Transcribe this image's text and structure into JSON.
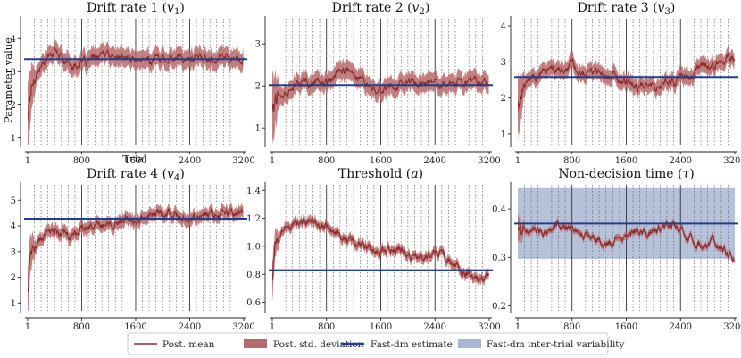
{
  "chart_data": {
    "type": "line",
    "shared": {
      "xlabel": "Trial",
      "ylabel": "Parameter value",
      "x_ticks": [
        1,
        800,
        1600,
        2400,
        3200
      ],
      "x_range": [
        1,
        3200
      ],
      "solid_vlines": [
        800,
        1600,
        2400
      ],
      "dotted_vline_spacing": 100
    },
    "colors": {
      "mean": "#8b2a2a",
      "band": "#b86a6a",
      "fastdm": "#1f3f8f",
      "variability": "#a9b6d4"
    },
    "legend": [
      {
        "key": "mean",
        "label": "Post. mean"
      },
      {
        "key": "band",
        "label": "Post. std. deviation"
      },
      {
        "key": "fastdm",
        "label": "Fast-dm estimate"
      },
      {
        "key": "variability",
        "label": "Fast-dm inter-trial variability"
      }
    ],
    "panels": [
      {
        "id": "v1",
        "title_pre": "Drift rate 1 (",
        "title_sym": "v",
        "title_sub": "1",
        "title_post": ")",
        "ylim": [
          0.8,
          4.6
        ],
        "yticks": [
          1,
          2,
          3,
          4
        ],
        "fastdm": 3.38,
        "band_width": 0.28,
        "keypoints": [
          [
            1,
            1.7
          ],
          [
            60,
            2.6
          ],
          [
            150,
            3.05
          ],
          [
            300,
            3.45
          ],
          [
            400,
            3.6
          ],
          [
            550,
            3.35
          ],
          [
            700,
            3.2
          ],
          [
            900,
            3.3
          ],
          [
            1100,
            3.5
          ],
          [
            1300,
            3.45
          ],
          [
            1500,
            3.4
          ],
          [
            1700,
            3.3
          ],
          [
            1900,
            3.4
          ],
          [
            2100,
            3.45
          ],
          [
            2300,
            3.35
          ],
          [
            2500,
            3.45
          ],
          [
            2700,
            3.4
          ],
          [
            2900,
            3.45
          ],
          [
            3100,
            3.4
          ],
          [
            3200,
            3.35
          ]
        ]
      },
      {
        "id": "v2",
        "title_pre": "Drift rate 2 (",
        "title_sym": "v",
        "title_sub": "2",
        "title_post": ")",
        "ylim": [
          0.6,
          3.6
        ],
        "yticks": [
          1,
          2,
          3
        ],
        "fastdm": 2.02,
        "band_width": 0.22,
        "keypoints": [
          [
            1,
            1.5
          ],
          [
            60,
            1.7
          ],
          [
            200,
            1.85
          ],
          [
            400,
            2.05
          ],
          [
            600,
            2.1
          ],
          [
            800,
            2.05
          ],
          [
            950,
            2.3
          ],
          [
            1100,
            2.35
          ],
          [
            1300,
            2.2
          ],
          [
            1450,
            2.05
          ],
          [
            1600,
            1.9
          ],
          [
            1800,
            2.0
          ],
          [
            2000,
            2.05
          ],
          [
            2200,
            2.0
          ],
          [
            2400,
            2.1
          ],
          [
            2600,
            2.05
          ],
          [
            2800,
            2.1
          ],
          [
            3000,
            2.2
          ],
          [
            3200,
            2.05
          ]
        ]
      },
      {
        "id": "v3",
        "title_pre": "Drift rate 3 (",
        "title_sym": "v",
        "title_sub": "3",
        "title_post": ")",
        "ylim": [
          0.7,
          4.2
        ],
        "yticks": [
          1,
          2,
          3,
          4
        ],
        "fastdm": 2.58,
        "band_width": 0.22,
        "keypoints": [
          [
            1,
            1.7
          ],
          [
            60,
            2.1
          ],
          [
            150,
            2.45
          ],
          [
            300,
            2.65
          ],
          [
            450,
            2.85
          ],
          [
            600,
            2.75
          ],
          [
            800,
            2.85
          ],
          [
            1000,
            2.75
          ],
          [
            1200,
            2.65
          ],
          [
            1400,
            2.55
          ],
          [
            1600,
            2.4
          ],
          [
            1800,
            2.3
          ],
          [
            2000,
            2.3
          ],
          [
            2200,
            2.45
          ],
          [
            2400,
            2.5
          ],
          [
            2600,
            2.7
          ],
          [
            2800,
            2.85
          ],
          [
            3000,
            3.05
          ],
          [
            3200,
            3.1
          ]
        ]
      },
      {
        "id": "v4",
        "title_pre": "Drift rate 4 (",
        "title_sym": "v",
        "title_sub": "4",
        "title_post": ")",
        "ylim": [
          0.7,
          5.6
        ],
        "yticks": [
          1,
          2,
          3,
          4,
          5
        ],
        "fastdm": 4.28,
        "band_width": 0.25,
        "keypoints": [
          [
            1,
            1.6
          ],
          [
            50,
            2.8
          ],
          [
            150,
            3.4
          ],
          [
            300,
            3.7
          ],
          [
            450,
            3.75
          ],
          [
            600,
            3.6
          ],
          [
            800,
            3.8
          ],
          [
            1000,
            4.0
          ],
          [
            1200,
            4.15
          ],
          [
            1400,
            4.25
          ],
          [
            1600,
            4.25
          ],
          [
            1800,
            4.5
          ],
          [
            2000,
            4.5
          ],
          [
            2200,
            4.45
          ],
          [
            2400,
            4.35
          ],
          [
            2600,
            4.45
          ],
          [
            2800,
            4.5
          ],
          [
            3000,
            4.55
          ],
          [
            3200,
            4.55
          ]
        ]
      },
      {
        "id": "a",
        "title_pre": "Threshold (",
        "title_sym": "a",
        "title_sub": "",
        "title_post": ")",
        "ylim": [
          0.54,
          1.44
        ],
        "yticks": [
          0.6,
          0.8,
          1.0,
          1.2,
          1.4
        ],
        "ytick_decimals": 1,
        "fastdm": 0.83,
        "band_width": 0.035,
        "keypoints": [
          [
            1,
            0.75
          ],
          [
            40,
            1.05
          ],
          [
            150,
            1.12
          ],
          [
            300,
            1.16
          ],
          [
            500,
            1.19
          ],
          [
            700,
            1.17
          ],
          [
            900,
            1.12
          ],
          [
            1100,
            1.05
          ],
          [
            1300,
            1.01
          ],
          [
            1500,
            0.98
          ],
          [
            1700,
            0.98
          ],
          [
            1900,
            0.97
          ],
          [
            2100,
            0.93
          ],
          [
            2300,
            0.92
          ],
          [
            2450,
            0.97
          ],
          [
            2600,
            0.89
          ],
          [
            2800,
            0.81
          ],
          [
            3000,
            0.77
          ],
          [
            3100,
            0.76
          ],
          [
            3200,
            0.79
          ]
        ]
      },
      {
        "id": "tau",
        "title_pre": "Non-decision time (",
        "title_sym": "τ",
        "title_sub": "",
        "title_post": ")",
        "ylim": [
          0.19,
          0.45
        ],
        "yticks": [
          0.2,
          0.3,
          0.4
        ],
        "ytick_decimals": 1,
        "fastdm": 0.37,
        "variability": [
          0.297,
          0.443
        ],
        "band_width": 0.007,
        "keypoints": [
          [
            1,
            0.36
          ],
          [
            60,
            0.35
          ],
          [
            200,
            0.36
          ],
          [
            400,
            0.35
          ],
          [
            550,
            0.37
          ],
          [
            700,
            0.36
          ],
          [
            900,
            0.35
          ],
          [
            1100,
            0.34
          ],
          [
            1300,
            0.33
          ],
          [
            1500,
            0.34
          ],
          [
            1700,
            0.36
          ],
          [
            1900,
            0.35
          ],
          [
            2100,
            0.36
          ],
          [
            2300,
            0.37
          ],
          [
            2500,
            0.34
          ],
          [
            2700,
            0.33
          ],
          [
            2900,
            0.33
          ],
          [
            3100,
            0.31
          ],
          [
            3200,
            0.29
          ]
        ]
      }
    ]
  }
}
